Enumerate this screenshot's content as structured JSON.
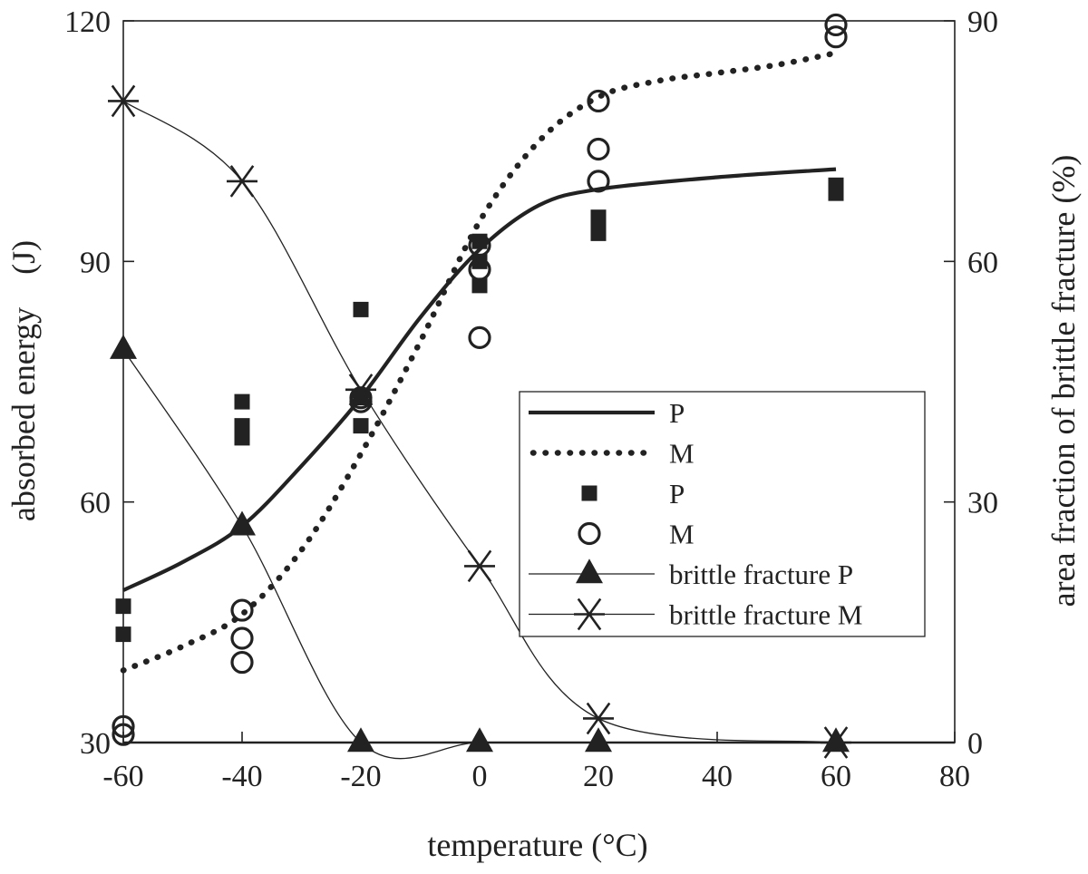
{
  "chart_data": {
    "type": "scatter",
    "title": "",
    "xlabel": "temperature (°C)",
    "ylabel": "absorbed energy　(J)",
    "y2label": "area fraction of brittle fracture (%)",
    "xlim": [
      -60,
      80
    ],
    "ylim": [
      30,
      120
    ],
    "y2lim": [
      0,
      90
    ],
    "xticks": [
      -60,
      -40,
      -20,
      0,
      20,
      40,
      60,
      80
    ],
    "yticks": [
      30,
      60,
      90,
      120
    ],
    "y2ticks": [
      0,
      30,
      60,
      90
    ],
    "grid": false,
    "legend_position": "center-right",
    "legend": [
      {
        "label": "P",
        "marker": "solid-line"
      },
      {
        "label": "M",
        "marker": "dotted-line"
      },
      {
        "label": "P",
        "marker": "filled-square"
      },
      {
        "label": "M",
        "marker": "open-circle"
      },
      {
        "label": "brittle fracture P",
        "marker": "line-triangle"
      },
      {
        "label": "brittle fracture M",
        "marker": "line-asterisk"
      }
    ],
    "series": [
      {
        "name": "P",
        "kind": "fit-line",
        "axis": "left",
        "x": [
          -60,
          -50,
          -40,
          -30,
          -20,
          -10,
          0,
          10,
          20,
          40,
          60
        ],
        "y": [
          49,
          52.5,
          57,
          64.5,
          73,
          83,
          91.5,
          97,
          99,
          100.5,
          101.5
        ]
      },
      {
        "name": "M",
        "kind": "fit-line",
        "axis": "left",
        "x": [
          -60,
          -50,
          -40,
          -30,
          -20,
          -10,
          0,
          10,
          20,
          30,
          40,
          50,
          60
        ],
        "y": [
          39,
          42,
          46,
          54,
          66,
          80,
          95,
          105,
          110.5,
          112.5,
          113.5,
          114.5,
          116
        ]
      },
      {
        "name": "P",
        "kind": "points",
        "axis": "left",
        "points": [
          [
            -60,
            47
          ],
          [
            -60,
            43.5
          ],
          [
            -40,
            72.5
          ],
          [
            -40,
            69.5
          ],
          [
            -40,
            68
          ],
          [
            -20,
            84
          ],
          [
            -20,
            73
          ],
          [
            -20,
            69.5
          ],
          [
            0,
            92.5
          ],
          [
            0,
            90
          ],
          [
            0,
            87
          ],
          [
            20,
            95.5
          ],
          [
            20,
            94.5
          ],
          [
            20,
            93.5
          ],
          [
            60,
            99.5
          ],
          [
            60,
            98.5
          ]
        ]
      },
      {
        "name": "M",
        "kind": "points",
        "axis": "left",
        "points": [
          [
            -60,
            32
          ],
          [
            -60,
            31
          ],
          [
            -40,
            46.5
          ],
          [
            -40,
            43
          ],
          [
            -40,
            40
          ],
          [
            -20,
            73
          ],
          [
            -20,
            72.5
          ],
          [
            0,
            92
          ],
          [
            0,
            89
          ],
          [
            0,
            80.5
          ],
          [
            20,
            110
          ],
          [
            20,
            104
          ],
          [
            20,
            100
          ],
          [
            60,
            119.5
          ],
          [
            60,
            118
          ]
        ]
      },
      {
        "name": "brittle fracture P",
        "kind": "marker-line",
        "axis": "right",
        "x": [
          -60,
          -40,
          -20,
          0,
          20,
          60
        ],
        "y": [
          49,
          27,
          0,
          0,
          0,
          0
        ]
      },
      {
        "name": "brittle fracture M",
        "kind": "marker-line",
        "axis": "right",
        "x": [
          -60,
          -40,
          -20,
          0,
          20,
          60
        ],
        "y": [
          80,
          70,
          44,
          22,
          3,
          0
        ]
      }
    ]
  }
}
